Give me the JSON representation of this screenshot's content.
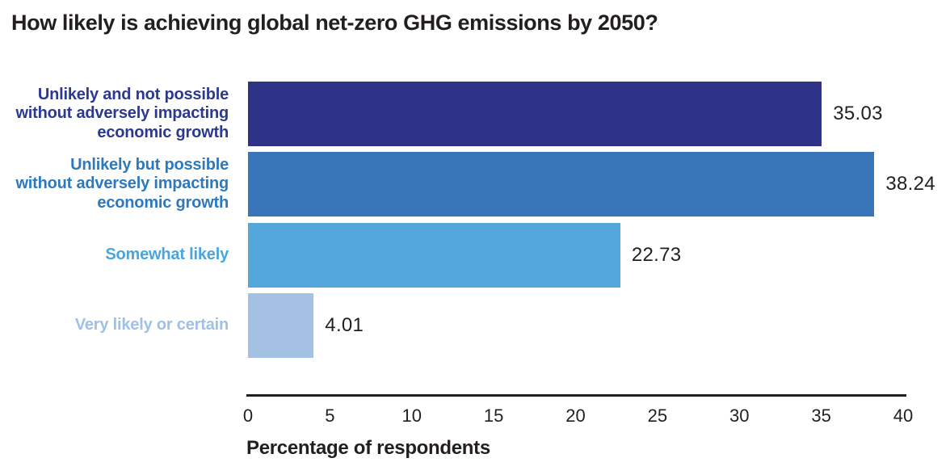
{
  "title": "How likely is achieving global net-zero GHG emissions by 2050?",
  "colors": {
    "background": "#ffffff",
    "title_text": "#231f20",
    "axis_line": "#231f20",
    "value_text": "#231f20",
    "tick_text": "#231f20"
  },
  "chart_data": {
    "type": "bar",
    "orientation": "horizontal",
    "title": "How likely is achieving global net-zero GHG emissions by 2050?",
    "categories": [
      "Unlikely and not possible without adversely impacting economic growth",
      "Unlikely but possible without adversely impacting economic growth",
      "Somewhat likely",
      "Very likely or certain"
    ],
    "categories_wrapped": [
      "Unlikely and not possible\nwithout adversely impacting\neconomic growth",
      "Unlikely but possible\nwithout adversely impacting\neconomic growth",
      "Somewhat likely",
      "Very likely or certain"
    ],
    "values": [
      35.03,
      38.24,
      22.73,
      4.01
    ],
    "value_labels": [
      "35.03",
      "38.24",
      "22.73",
      "4.01"
    ],
    "bar_colors": [
      "#2e3388",
      "#3976b9",
      "#54a7db",
      "#a4c1e4"
    ],
    "label_colors": [
      "#2b3990",
      "#2e79bd",
      "#4ba5db",
      "#a0c0e6"
    ],
    "xlabel": "Percentage of respondents",
    "xlim": [
      0,
      40
    ],
    "x_ticks": [
      0,
      5,
      10,
      15,
      20,
      25,
      30,
      35,
      40
    ],
    "grid": false,
    "legend": null
  }
}
